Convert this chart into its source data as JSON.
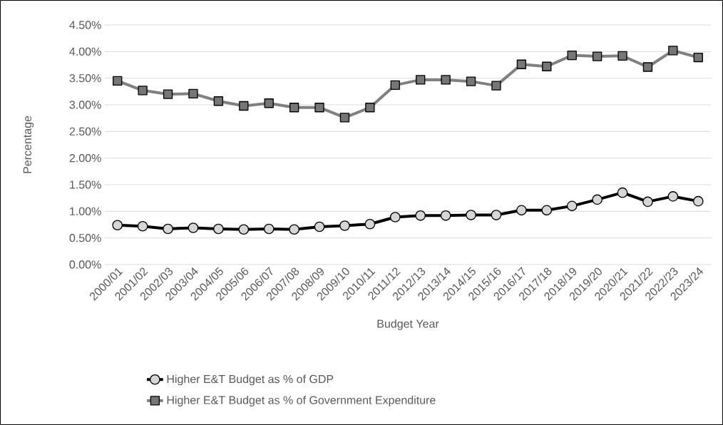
{
  "chart_data": {
    "type": "line",
    "xlabel": "Budget Year",
    "ylabel": "Percentage",
    "categories": [
      "2000/01",
      "2001/02",
      "2002/03",
      "2003/04",
      "2004/05",
      "2005/06",
      "2006/07",
      "2007/08",
      "2008/09",
      "2009/10",
      "2010/11",
      "2011/12",
      "2012/13",
      "2013/14",
      "2014/15",
      "2015/16",
      "2016/17",
      "2017/18",
      "2018/19",
      "2019/20",
      "2020/21",
      "2021/22",
      "2022/23",
      "2023/24"
    ],
    "series": [
      {
        "name": "Higher E&T Budget as % of GDP",
        "color": "#000000",
        "marker": "circle",
        "values": [
          0.74,
          0.72,
          0.67,
          0.69,
          0.67,
          0.66,
          0.67,
          0.66,
          0.71,
          0.73,
          0.76,
          0.89,
          0.92,
          0.92,
          0.93,
          0.93,
          1.02,
          1.02,
          1.1,
          1.22,
          1.35,
          1.18,
          1.28,
          1.19
        ]
      },
      {
        "name": "Higher E&T Budget as % of Government Expenditure",
        "color": "#808080",
        "marker": "square",
        "values": [
          3.45,
          3.27,
          3.2,
          3.21,
          3.07,
          2.98,
          3.03,
          2.95,
          2.95,
          2.76,
          2.95,
          3.37,
          3.47,
          3.47,
          3.44,
          3.36,
          3.76,
          3.72,
          3.93,
          3.91,
          3.92,
          3.71,
          4.02,
          3.89
        ]
      }
    ],
    "ylim": [
      0,
      4.5
    ],
    "yticks": [
      {
        "value": 0,
        "label": "0.00%"
      },
      {
        "value": 0.5,
        "label": "0.50%"
      },
      {
        "value": 1,
        "label": "1.00%"
      },
      {
        "value": 1.5,
        "label": "1.50%"
      },
      {
        "value": 2,
        "label": "2.00%"
      },
      {
        "value": 2.5,
        "label": "2.50%"
      },
      {
        "value": 3,
        "label": "3.00%"
      },
      {
        "value": 3.5,
        "label": "3.50%"
      },
      {
        "value": 4,
        "label": "4.00%"
      },
      {
        "value": 4.5,
        "label": "4.50%"
      }
    ],
    "grid": "y",
    "legend": "bottom"
  }
}
